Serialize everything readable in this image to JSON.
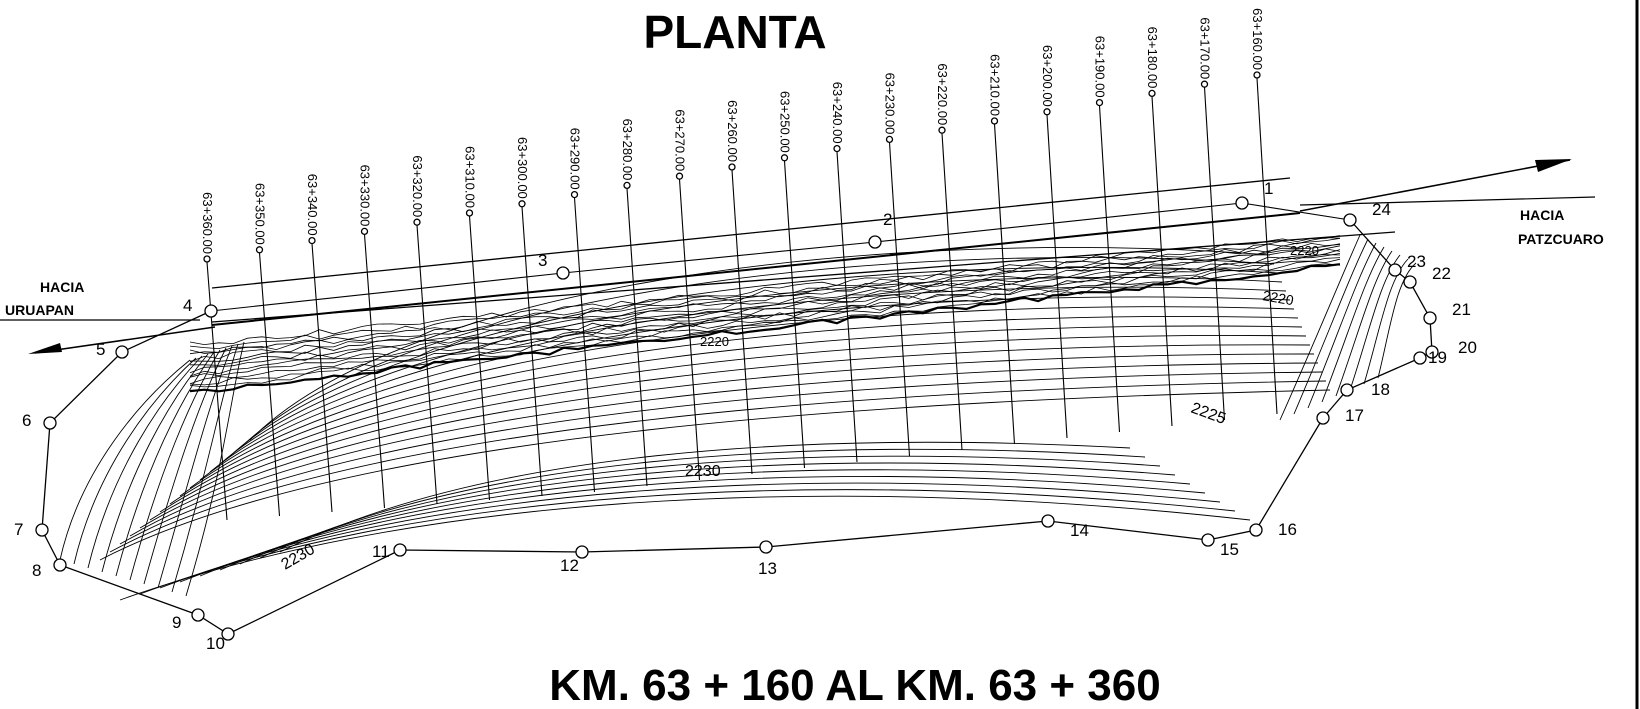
{
  "title": "PLANTA",
  "subtitle": "KM. 63 + 160 AL KM. 63 + 360",
  "directions": {
    "west_line1": "HACIA",
    "west_line2": "URUAPAN",
    "east_line1": "HACIA",
    "east_line2": "PATZCUARO"
  },
  "stations": [
    "63+360.00",
    "63+350.00",
    "63+340.00",
    "63+330.00",
    "63+320.00",
    "63+310.00",
    "63+300.00",
    "63+290.00",
    "63+280.00",
    "63+270.00",
    "63+260.00",
    "63+250.00",
    "63+240.00",
    "63+230.00",
    "63+220.00",
    "63+210.00",
    "63+200.00",
    "63+190.00",
    "63+180.00",
    "63+170.00",
    "63+160.00"
  ],
  "points": [
    "1",
    "2",
    "3",
    "4",
    "5",
    "6",
    "7",
    "8",
    "9",
    "10",
    "11",
    "12",
    "13",
    "14",
    "15",
    "16",
    "17",
    "18",
    "19",
    "20",
    "21",
    "22",
    "23",
    "24"
  ],
  "contour_labels": [
    "2230",
    "2230",
    "2225",
    "2220",
    "2220",
    "2220"
  ]
}
